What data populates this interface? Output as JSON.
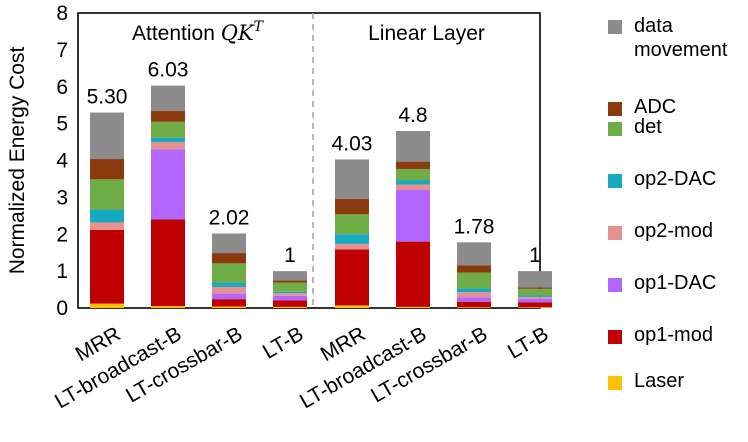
{
  "chart_data": {
    "type": "bar",
    "stacked": true,
    "ylabel": "Normalized Energy Cost",
    "ylim": [
      0,
      8
    ],
    "yticks": [
      "0",
      "1",
      "2",
      "3",
      "4",
      "5",
      "6",
      "7",
      "8"
    ],
    "legend_position": "right",
    "groups": [
      {
        "label": "Attention QK^T",
        "label_main": "Attention ",
        "label_math": "QK",
        "label_sup": "T",
        "categories": [
          "MRR",
          "LT-broadcast-B",
          "LT-crossbar-B",
          "LT-B"
        ]
      },
      {
        "label": "Linear Layer",
        "label_main": "Linear Layer",
        "label_math": "",
        "label_sup": "",
        "categories": [
          "MRR",
          "LT-broadcast-B",
          "LT-crossbar-B",
          "LT-B"
        ]
      }
    ],
    "categories": [
      "MRR",
      "LT-broadcast-B",
      "LT-crossbar-B",
      "LT-B",
      "MRR",
      "LT-broadcast-B",
      "LT-crossbar-B",
      "LT-B"
    ],
    "totals_labels": [
      "5.30",
      "6.03",
      "2.02",
      "1",
      "4.03",
      "4.8",
      "1.78",
      "1"
    ],
    "series": [
      {
        "name": "Laser",
        "color": "#FFC000",
        "values": [
          0.12,
          0.05,
          0.04,
          0.03,
          0.07,
          0.03,
          0.02,
          0.02
        ]
      },
      {
        "name": "op1-mod",
        "color": "#C00000",
        "values": [
          2.0,
          2.35,
          0.2,
          0.18,
          1.52,
          1.77,
          0.15,
          0.13
        ]
      },
      {
        "name": "op1-DAC",
        "color": "#B266FF",
        "values": [
          0.0,
          1.9,
          0.15,
          0.12,
          0.0,
          1.4,
          0.12,
          0.1
        ]
      },
      {
        "name": "op2-mod",
        "color": "#E69090",
        "values": [
          0.2,
          0.2,
          0.18,
          0.07,
          0.15,
          0.15,
          0.14,
          0.05
        ]
      },
      {
        "name": "op2-DAC",
        "color": "#17A9C0",
        "values": [
          0.35,
          0.12,
          0.12,
          0.04,
          0.26,
          0.12,
          0.1,
          0.04
        ]
      },
      {
        "name": "det",
        "color": "#70AD47",
        "values": [
          0.82,
          0.43,
          0.52,
          0.25,
          0.54,
          0.3,
          0.43,
          0.18
        ]
      },
      {
        "name": "ADC",
        "color": "#8B3A0F",
        "values": [
          0.55,
          0.3,
          0.28,
          0.06,
          0.42,
          0.2,
          0.2,
          0.04
        ]
      },
      {
        "name": "data movement",
        "color": "#8C8C8C",
        "values": [
          1.26,
          0.68,
          0.53,
          0.25,
          1.07,
          0.83,
          0.62,
          0.44
        ]
      }
    ],
    "legend_order": [
      "data movement",
      "ADC",
      "det",
      "op2-DAC",
      "op2-mod",
      "op1-DAC",
      "op1-mod",
      "Laser"
    ]
  }
}
